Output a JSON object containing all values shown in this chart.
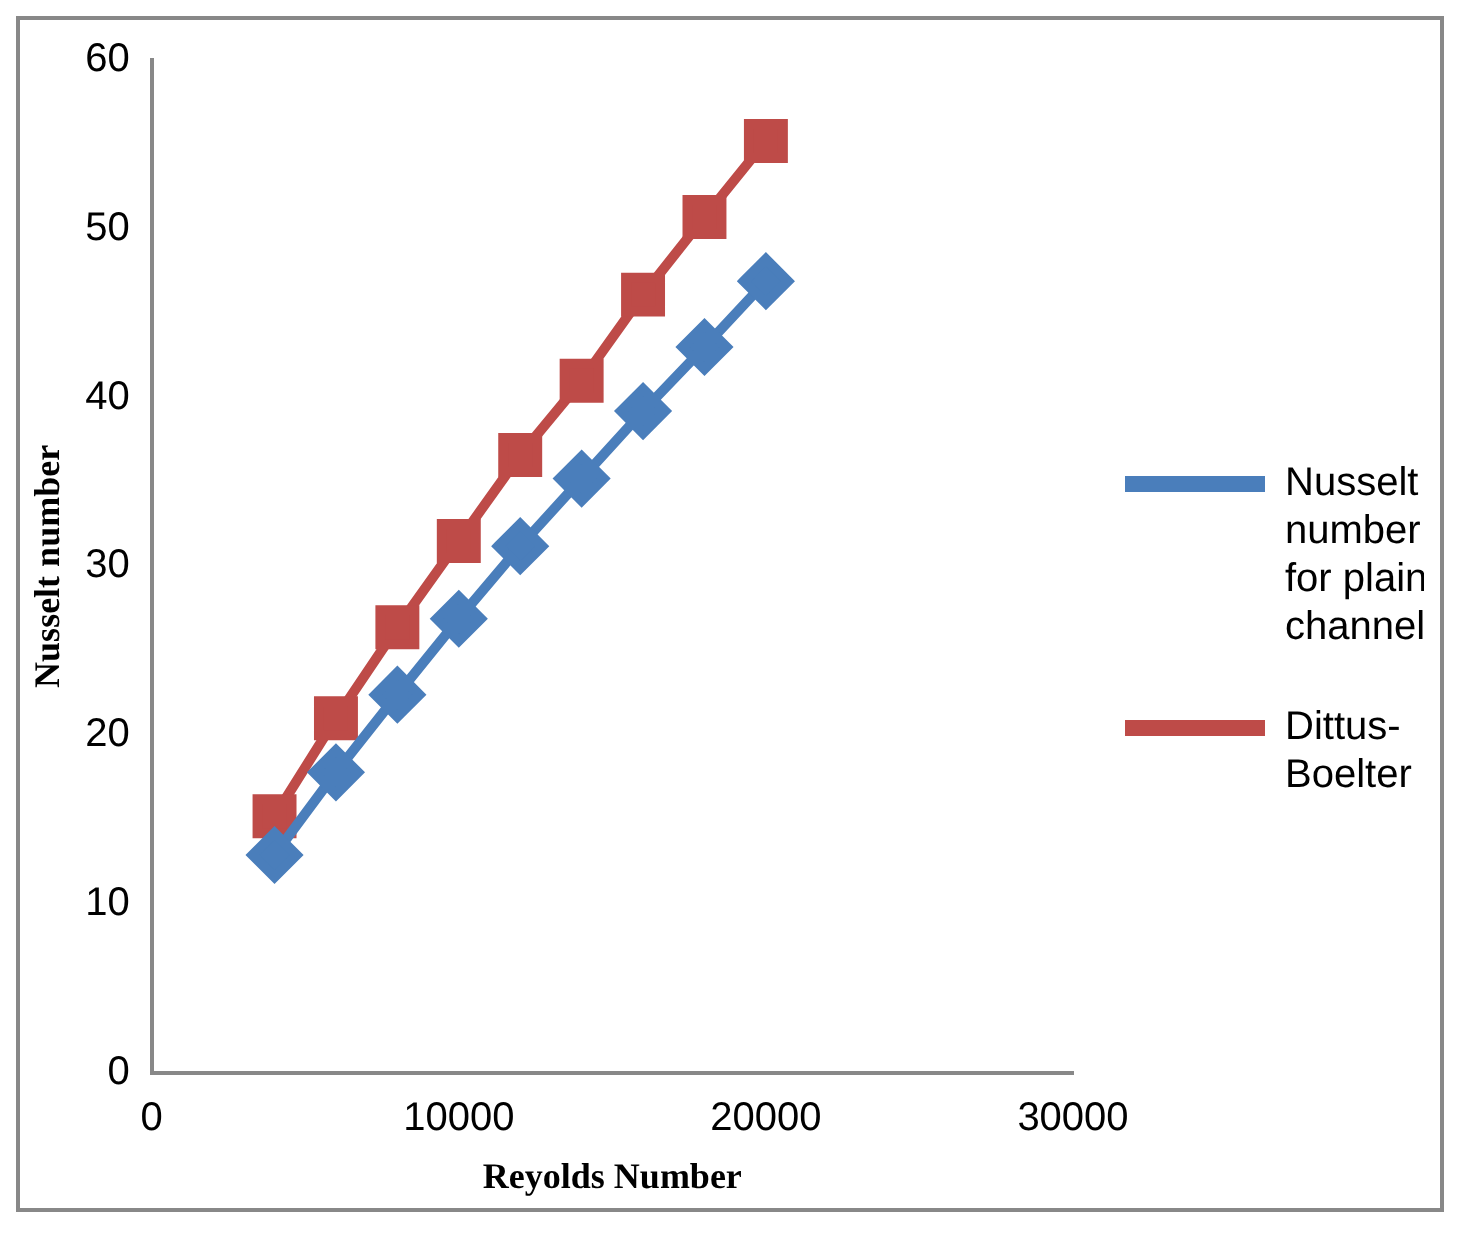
{
  "chart_data": {
    "type": "line",
    "xlabel": "Reyolds Number",
    "ylabel": "Nusselt number",
    "x": [
      4000,
      6000,
      8000,
      10000,
      12000,
      14000,
      16000,
      18000,
      20000
    ],
    "series": [
      {
        "name": "Nusselt number for plain channel",
        "color": "#4a7ebb",
        "marker": "diamond",
        "values": [
          12.9,
          17.8,
          22.4,
          26.9,
          31.2,
          35.2,
          39.2,
          43.0,
          46.9
        ]
      },
      {
        "name": "Dittus-Boelter",
        "color": "#be4b48",
        "marker": "square",
        "values": [
          15.2,
          21.0,
          26.4,
          31.5,
          36.6,
          41.0,
          46.1,
          50.7,
          55.2
        ]
      }
    ],
    "xlim": [
      0,
      30000
    ],
    "xticks": [
      0,
      10000,
      20000,
      30000
    ],
    "ylim": [
      0,
      60
    ],
    "yticks": [
      0,
      10,
      20,
      30,
      40,
      50,
      60
    ],
    "grid": false,
    "legend": "right"
  }
}
